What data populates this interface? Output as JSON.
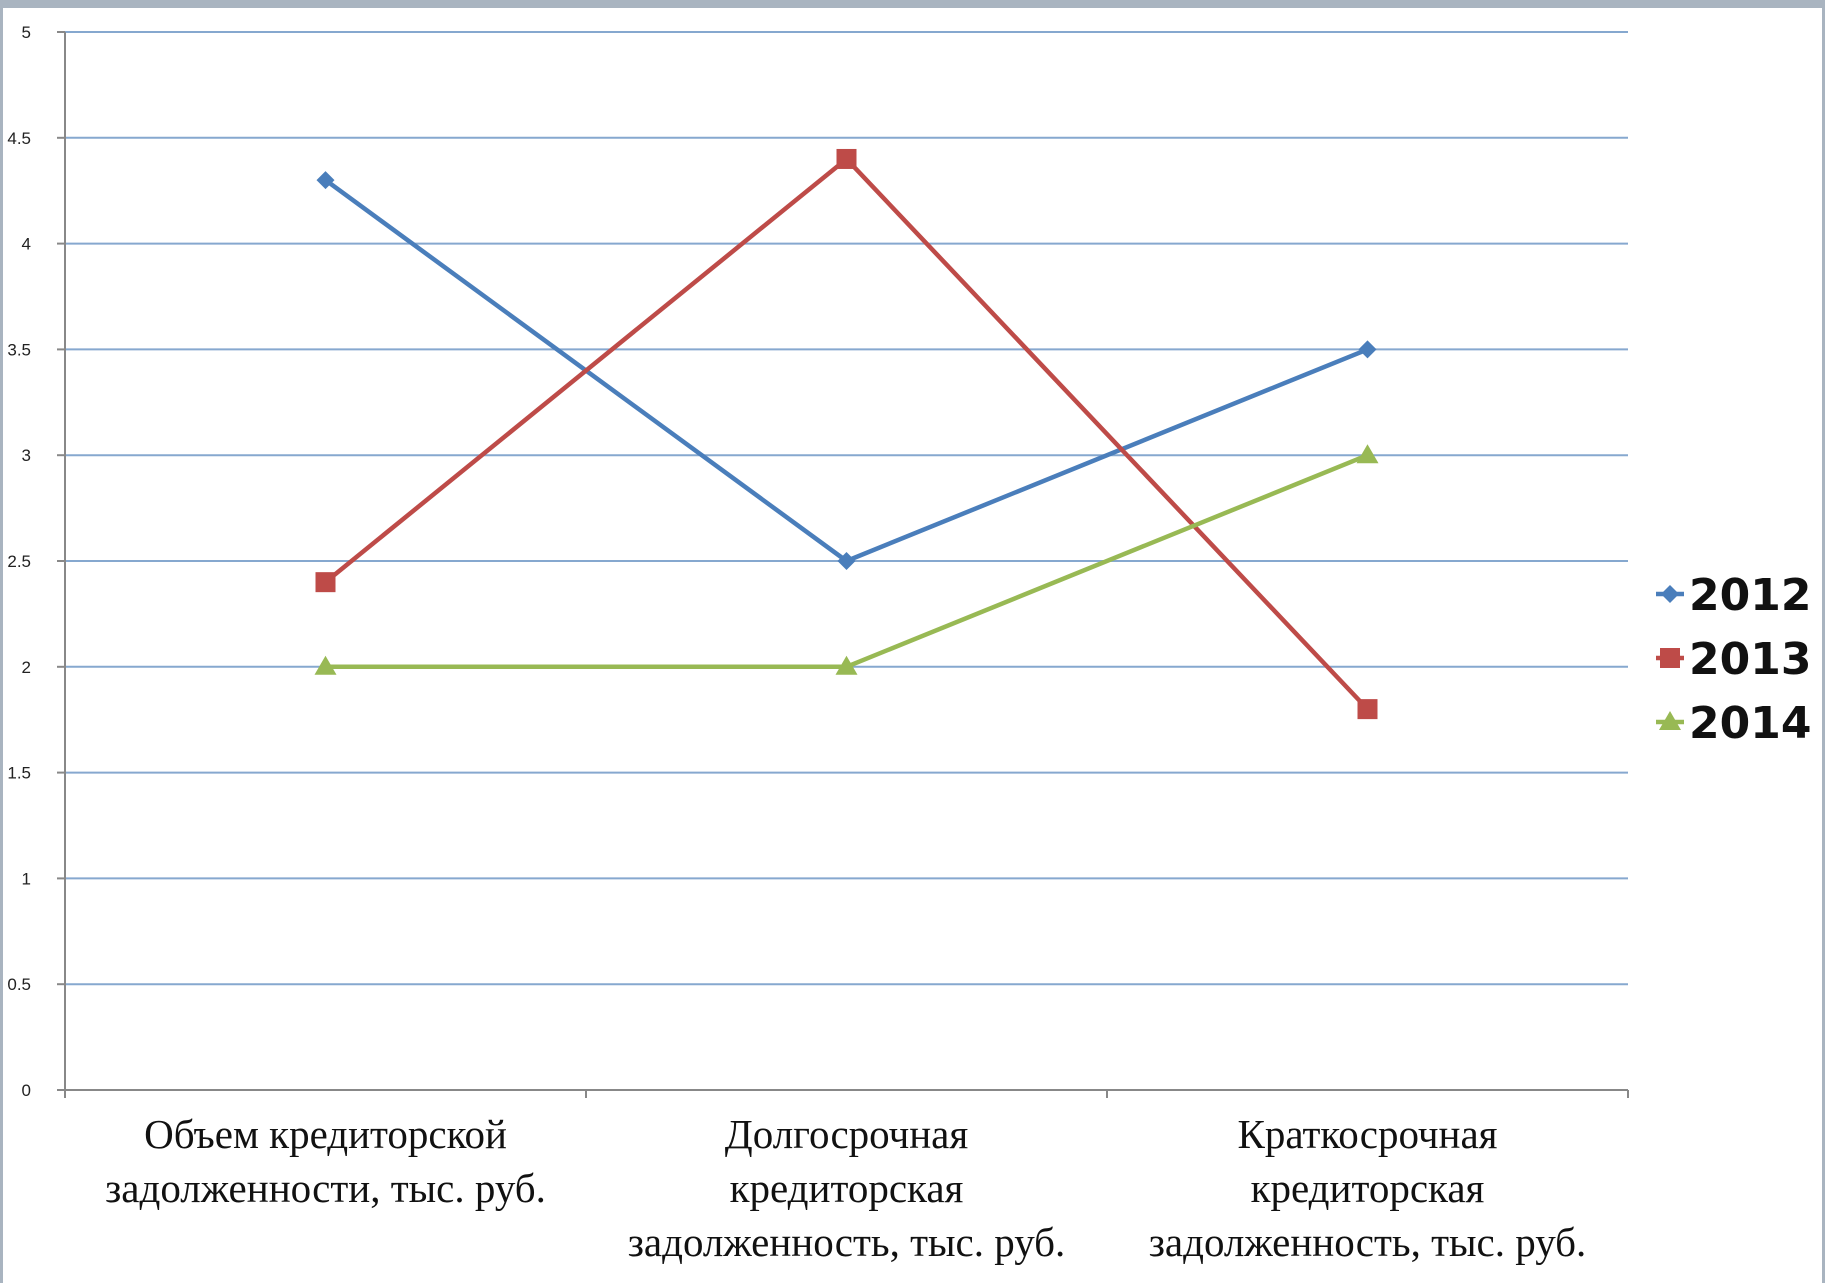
{
  "chart_data": {
    "type": "line",
    "title": "",
    "xlabel": "",
    "ylabel": "",
    "ylim": [
      0,
      5
    ],
    "yticks": [
      "0",
      "0.5",
      "1",
      "1.5",
      "2",
      "2.5",
      "3",
      "3.5",
      "4",
      "4.5",
      "5"
    ],
    "categories": [
      [
        "Объем кредиторской",
        "задолженности, тыс. руб."
      ],
      [
        "Долгосрочная",
        "кредиторская",
        "задолженность, тыс. руб."
      ],
      [
        "Краткосрочная",
        "кредиторская",
        "задолженность, тыс. руб."
      ]
    ],
    "series": [
      {
        "name": "2012",
        "values": [
          4.3,
          2.5,
          3.5
        ],
        "color": "#4a7ebb",
        "marker": "diamond"
      },
      {
        "name": "2013",
        "values": [
          2.4,
          4.4,
          1.8
        ],
        "color": "#be4b48",
        "marker": "square"
      },
      {
        "name": "2014",
        "values": [
          2.0,
          2.0,
          3.0
        ],
        "color": "#98b954",
        "marker": "triangle"
      }
    ],
    "grid": true,
    "legend_position": "right"
  }
}
